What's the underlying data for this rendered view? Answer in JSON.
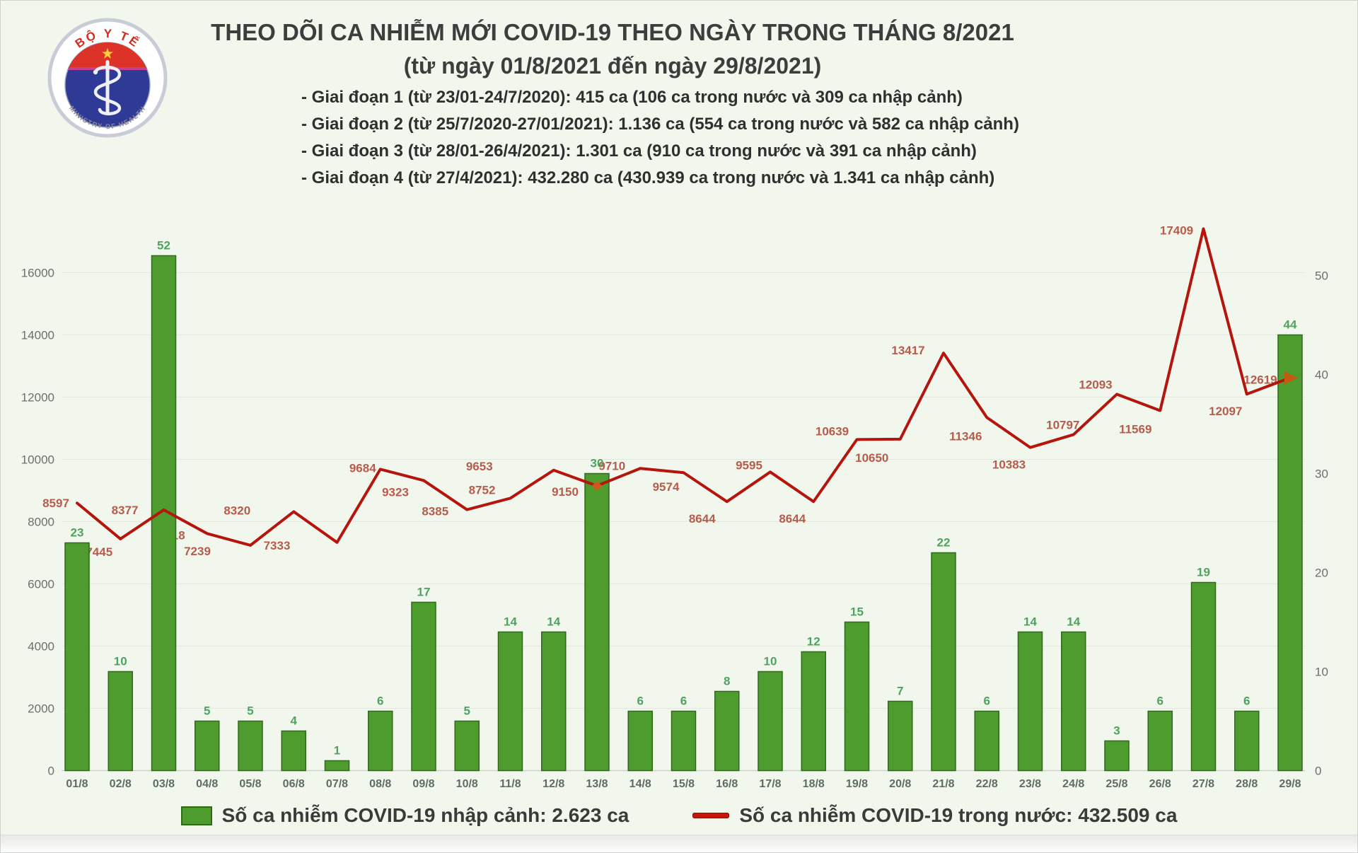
{
  "logo": {
    "top_text": "BỘ Y TẾ",
    "bottom_text": "MINISTRY OF HEALTH"
  },
  "header": {
    "title": "THEO DÕI CA NHIỄM MỚI COVID-19 THEO NGÀY TRONG THÁNG 8/2021",
    "subtitle": "(từ ngày 01/8/2021 đến ngày 29/8/2021)",
    "notes": [
      "- Giai đoạn 1 (từ 23/01-24/7/2020): 415 ca (106 ca trong nước và 309 ca nhập cảnh)",
      "- Giai đoạn 2 (từ 25/7/2020-27/01/2021): 1.136 ca (554 ca trong nước và 582 ca nhập cảnh)",
      "- Giai đoạn 3 (từ 28/01-26/4/2021): 1.301 ca (910 ca trong nước và 391 ca nhập cảnh)",
      "- Giai đoạn 4 (từ 27/4/2021): 432.280 ca (430.939 ca trong nước và 1.341 ca nhập cảnh)"
    ]
  },
  "legend": {
    "bar_label": "Số ca nhiễm COVID-19 nhập cảnh: 2.623 ca",
    "line_label": "Số ca nhiễm COVID-19 trong nước: 432.509 ca"
  },
  "colors": {
    "background": "#f2f7ee",
    "bar": "#4e9c2e",
    "bar_border": "#2e6a1a",
    "line": "#b5150c",
    "marker_orange": "#d2571e"
  },
  "chart_data": {
    "type": "bar",
    "subtype": "bar+line combo, dual axis",
    "title": "THEO DÕI CA NHIỄM MỚI COVID-19 THEO NGÀY TRONG THÁNG 8/2021",
    "categories": [
      "01/8",
      "02/8",
      "03/8",
      "04/8",
      "05/8",
      "06/8",
      "07/8",
      "08/8",
      "09/8",
      "10/8",
      "11/8",
      "12/8",
      "13/8",
      "14/8",
      "15/8",
      "16/8",
      "17/8",
      "18/8",
      "19/8",
      "20/8",
      "21/8",
      "22/8",
      "23/8",
      "24/8",
      "25/8",
      "26/8",
      "27/8",
      "28/8",
      "29/8"
    ],
    "series": [
      {
        "name": "Số ca nhiễm COVID-19 nhập cảnh",
        "type": "bar",
        "axis": "right",
        "color": "#4e9c2e",
        "values": [
          23,
          10,
          52,
          5,
          5,
          4,
          1,
          6,
          17,
          5,
          14,
          14,
          30,
          6,
          6,
          8,
          10,
          12,
          15,
          7,
          22,
          6,
          14,
          14,
          3,
          6,
          19,
          6,
          44
        ]
      },
      {
        "name": "Số ca nhiễm COVID-19 trong nước",
        "type": "line",
        "axis": "left",
        "color": "#b5150c",
        "values": [
          8597,
          7445,
          8377,
          7618,
          7239,
          8320,
          7333,
          9684,
          9323,
          8385,
          8752,
          9653,
          9150,
          9710,
          9574,
          8644,
          9595,
          8644,
          10639,
          10650,
          13417,
          11346,
          10383,
          10797,
          12093,
          11569,
          17409,
          12097,
          12619
        ]
      }
    ],
    "left_axis": {
      "min": 0,
      "max": 16000,
      "step": 2000,
      "ticks": [
        0,
        2000,
        4000,
        6000,
        8000,
        10000,
        12000,
        14000,
        16000
      ]
    },
    "right_axis": {
      "min": 0,
      "max": 50,
      "step": 10,
      "ticks": [
        0,
        10,
        20,
        30,
        40,
        50
      ]
    },
    "grid": true,
    "legend_position": "bottom",
    "label_placement": [
      [
        -30,
        6
      ],
      [
        -30,
        24
      ],
      [
        -55,
        6
      ],
      [
        -50,
        8
      ],
      [
        -75,
        14
      ],
      [
        -80,
        4
      ],
      [
        -85,
        10
      ],
      [
        -25,
        4
      ],
      [
        -40,
        22
      ],
      [
        -45,
        8
      ],
      [
        -40,
        -6
      ],
      [
        -105,
        0
      ],
      [
        -45,
        14
      ],
      [
        -40,
        2
      ],
      [
        -25,
        26
      ],
      [
        -35,
        30
      ],
      [
        -30,
        -4
      ],
      [
        -30,
        30
      ],
      [
        -35,
        -6
      ],
      [
        -40,
        32
      ],
      [
        -50,
        2
      ],
      [
        -30,
        32
      ],
      [
        -30,
        30
      ],
      [
        -15,
        -8
      ],
      [
        -30,
        -8
      ],
      [
        -35,
        32
      ],
      [
        -38,
        8
      ],
      [
        -30,
        30
      ],
      [
        -42,
        8
      ]
    ]
  }
}
